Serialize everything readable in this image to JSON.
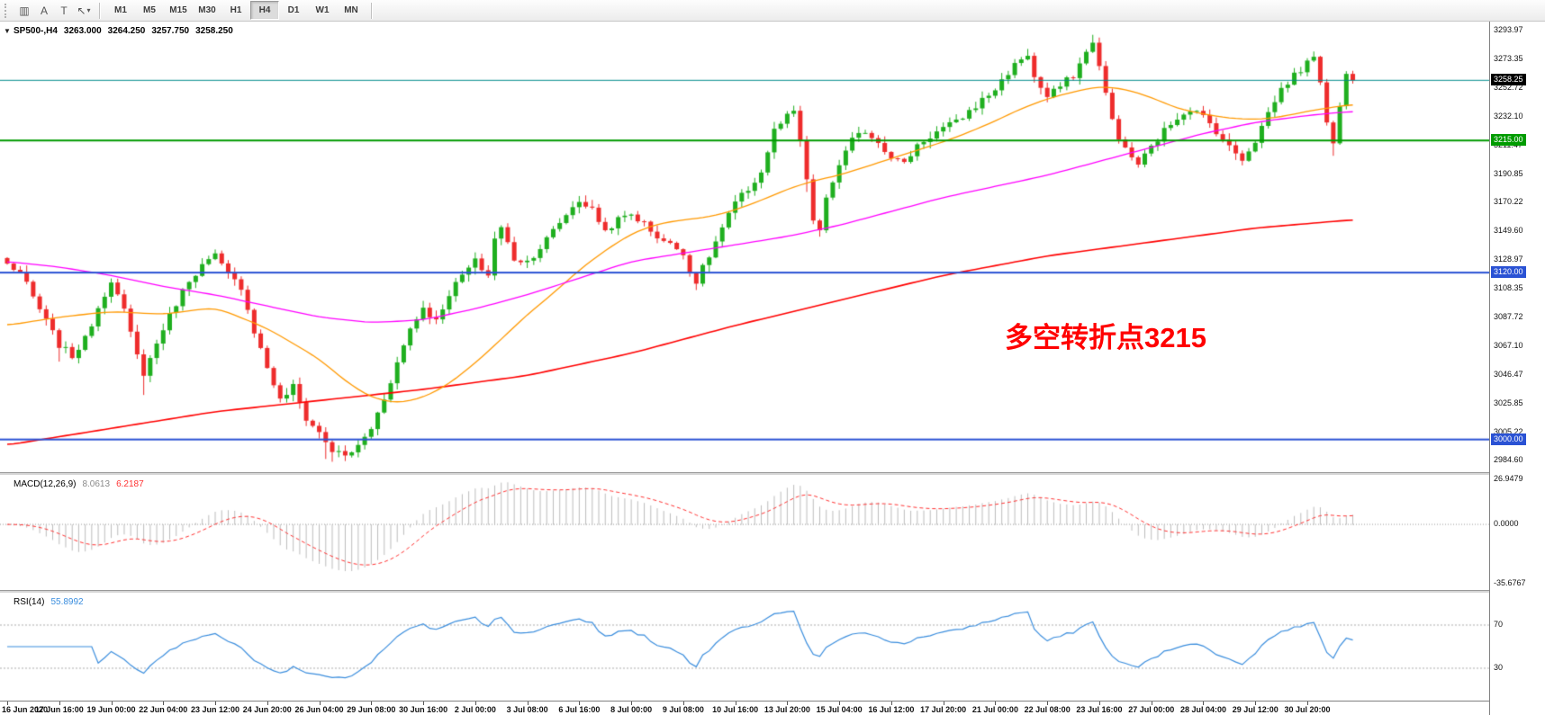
{
  "toolbar": {
    "icons": [
      {
        "name": "chart-window-icon",
        "glyph": "▥"
      },
      {
        "name": "text-tool-icon",
        "glyph": "A"
      },
      {
        "name": "label-tool-icon",
        "glyph": "T"
      },
      {
        "name": "line-tools-icon",
        "glyph": "↖",
        "caret": "▾"
      }
    ],
    "timeframes": [
      "M1",
      "M5",
      "M15",
      "M30",
      "H1",
      "H4",
      "D1",
      "W1",
      "MN"
    ],
    "active_timeframe": "H4"
  },
  "main": {
    "expander": "▼",
    "symbol": "SP500-,H4",
    "open": "3263.000",
    "high": "3264.250",
    "low": "3257.750",
    "close": "3258.250",
    "annotation": {
      "text": "多空转折点3215",
      "color": "#FF0000"
    }
  },
  "price_axis": {
    "labels": [
      "3293.97",
      "3273.35",
      "3252.72",
      "3232.10",
      "3211.47",
      "3190.85",
      "3170.22",
      "3149.60",
      "3128.97",
      "3108.35",
      "3087.72",
      "3067.10",
      "3046.47",
      "3025.85",
      "3005.22",
      "2984.60"
    ]
  },
  "tags": [
    {
      "label": "3258.25",
      "price": 3258.25,
      "bg": "#000000"
    },
    {
      "label": "3215.00",
      "price": 3215.0,
      "bg": "#009B00"
    },
    {
      "label": "3120.00",
      "price": 3120.0,
      "bg": "#2A52D4"
    },
    {
      "label": "3000.00",
      "price": 3000.0,
      "bg": "#2A52D4"
    }
  ],
  "chart_data": {
    "type": "candlestick",
    "symbol": "SP500-",
    "period": "H4",
    "bars": 208,
    "ylim": [
      2976.5,
      3300.5
    ],
    "up_color": "#1FAF1F",
    "down_color": "#EE2C2C",
    "close_anchors": [
      [
        0,
        3126
      ],
      [
        2,
        3120
      ],
      [
        4,
        3102
      ],
      [
        6,
        3085
      ],
      [
        8,
        3068
      ],
      [
        10,
        3060
      ],
      [
        12,
        3072
      ],
      [
        14,
        3095
      ],
      [
        16,
        3115
      ],
      [
        18,
        3092
      ],
      [
        20,
        3060
      ],
      [
        21,
        3048
      ],
      [
        22,
        3058
      ],
      [
        24,
        3080
      ],
      [
        26,
        3098
      ],
      [
        28,
        3115
      ],
      [
        30,
        3125
      ],
      [
        32,
        3132
      ],
      [
        34,
        3118
      ],
      [
        36,
        3110
      ],
      [
        38,
        3078
      ],
      [
        40,
        3052
      ],
      [
        42,
        3028
      ],
      [
        44,
        3038
      ],
      [
        46,
        3015
      ],
      [
        48,
        3005
      ],
      [
        50,
        2992
      ],
      [
        52,
        2988
      ],
      [
        54,
        2995
      ],
      [
        56,
        3008
      ],
      [
        58,
        3030
      ],
      [
        60,
        3055
      ],
      [
        62,
        3080
      ],
      [
        64,
        3095
      ],
      [
        66,
        3085
      ],
      [
        68,
        3105
      ],
      [
        70,
        3118
      ],
      [
        72,
        3128
      ],
      [
        74,
        3118
      ],
      [
        75,
        3145
      ],
      [
        76,
        3152
      ],
      [
        78,
        3130
      ],
      [
        80,
        3128
      ],
      [
        82,
        3138
      ],
      [
        84,
        3150
      ],
      [
        86,
        3162
      ],
      [
        88,
        3172
      ],
      [
        90,
        3165
      ],
      [
        92,
        3150
      ],
      [
        94,
        3158
      ],
      [
        96,
        3162
      ],
      [
        98,
        3155
      ],
      [
        100,
        3146
      ],
      [
        102,
        3140
      ],
      [
        104,
        3135
      ],
      [
        105,
        3120
      ],
      [
        106,
        3114
      ],
      [
        108,
        3132
      ],
      [
        110,
        3152
      ],
      [
        112,
        3170
      ],
      [
        114,
        3180
      ],
      [
        116,
        3192
      ],
      [
        118,
        3222
      ],
      [
        120,
        3232
      ],
      [
        121,
        3235
      ],
      [
        122,
        3215
      ],
      [
        123,
        3185
      ],
      [
        124,
        3158
      ],
      [
        125,
        3150
      ],
      [
        126,
        3172
      ],
      [
        128,
        3198
      ],
      [
        130,
        3215
      ],
      [
        132,
        3222
      ],
      [
        134,
        3214
      ],
      [
        136,
        3204
      ],
      [
        138,
        3198
      ],
      [
        140,
        3212
      ],
      [
        142,
        3218
      ],
      [
        144,
        3224
      ],
      [
        146,
        3228
      ],
      [
        148,
        3236
      ],
      [
        150,
        3244
      ],
      [
        152,
        3252
      ],
      [
        154,
        3264
      ],
      [
        156,
        3274
      ],
      [
        157,
        3277
      ],
      [
        158,
        3260
      ],
      [
        160,
        3246
      ],
      [
        162,
        3254
      ],
      [
        164,
        3262
      ],
      [
        166,
        3278
      ],
      [
        167,
        3287
      ],
      [
        168,
        3268
      ],
      [
        169,
        3248
      ],
      [
        170,
        3230
      ],
      [
        171,
        3218
      ],
      [
        172,
        3208
      ],
      [
        174,
        3198
      ],
      [
        176,
        3210
      ],
      [
        178,
        3222
      ],
      [
        180,
        3232
      ],
      [
        182,
        3238
      ],
      [
        184,
        3232
      ],
      [
        186,
        3222
      ],
      [
        188,
        3210
      ],
      [
        190,
        3202
      ],
      [
        192,
        3215
      ],
      [
        194,
        3235
      ],
      [
        196,
        3252
      ],
      [
        198,
        3262
      ],
      [
        200,
        3270
      ],
      [
        201,
        3277
      ],
      [
        202,
        3258
      ],
      [
        203,
        3230
      ],
      [
        204,
        3212
      ],
      [
        205,
        3240
      ],
      [
        206,
        3262
      ],
      [
        207,
        3258.25
      ]
    ],
    "wick_overrides": {
      "8": {
        "low": 3056
      },
      "21": {
        "low": 3032
      },
      "49": {
        "low": 2986
      },
      "50": {
        "low": 2984
      },
      "52": {
        "low": 2984.5
      },
      "123": {
        "low": 3178
      },
      "167": {
        "high": 3291
      },
      "201": {
        "high": 3279
      },
      "204": {
        "low": 3204
      }
    },
    "ma_lines": [
      {
        "name": "ma-slow",
        "color": "#FF0000",
        "width": 1.6,
        "anchors": [
          [
            0,
            2996
          ],
          [
            16,
            3008
          ],
          [
            32,
            3020
          ],
          [
            48,
            3028
          ],
          [
            64,
            3036
          ],
          [
            80,
            3046
          ],
          [
            96,
            3062
          ],
          [
            112,
            3082
          ],
          [
            128,
            3100
          ],
          [
            144,
            3118
          ],
          [
            160,
            3132
          ],
          [
            176,
            3142
          ],
          [
            192,
            3152
          ],
          [
            207,
            3158
          ]
        ]
      },
      {
        "name": "ma-fast",
        "color": "#FF9900",
        "width": 1.3,
        "anchors": [
          [
            0,
            3082
          ],
          [
            8,
            3088
          ],
          [
            16,
            3092
          ],
          [
            24,
            3090
          ],
          [
            32,
            3095
          ],
          [
            40,
            3080
          ],
          [
            48,
            3058
          ],
          [
            52,
            3042
          ],
          [
            56,
            3030
          ],
          [
            60,
            3026
          ],
          [
            64,
            3030
          ],
          [
            68,
            3040
          ],
          [
            72,
            3055
          ],
          [
            76,
            3072
          ],
          [
            80,
            3090
          ],
          [
            84,
            3105
          ],
          [
            88,
            3122
          ],
          [
            92,
            3136
          ],
          [
            96,
            3148
          ],
          [
            100,
            3155
          ],
          [
            104,
            3158
          ],
          [
            108,
            3160
          ],
          [
            112,
            3165
          ],
          [
            116,
            3172
          ],
          [
            120,
            3180
          ],
          [
            124,
            3186
          ],
          [
            128,
            3190
          ],
          [
            132,
            3196
          ],
          [
            136,
            3202
          ],
          [
            140,
            3208
          ],
          [
            144,
            3214
          ],
          [
            148,
            3221
          ],
          [
            152,
            3229
          ],
          [
            156,
            3238
          ],
          [
            160,
            3245
          ],
          [
            164,
            3250
          ],
          [
            168,
            3254
          ],
          [
            172,
            3252
          ],
          [
            176,
            3246
          ],
          [
            180,
            3238
          ],
          [
            184,
            3234
          ],
          [
            188,
            3231
          ],
          [
            192,
            3230
          ],
          [
            196,
            3232
          ],
          [
            200,
            3236
          ],
          [
            204,
            3239
          ],
          [
            207,
            3241
          ]
        ]
      },
      {
        "name": "ma-mid",
        "color": "#FF00FF",
        "width": 1.3,
        "anchors": [
          [
            0,
            3128
          ],
          [
            8,
            3124
          ],
          [
            16,
            3118
          ],
          [
            24,
            3110
          ],
          [
            32,
            3104
          ],
          [
            40,
            3096
          ],
          [
            48,
            3088
          ],
          [
            56,
            3084
          ],
          [
            64,
            3086
          ],
          [
            72,
            3094
          ],
          [
            80,
            3104
          ],
          [
            88,
            3116
          ],
          [
            96,
            3128
          ],
          [
            104,
            3134
          ],
          [
            112,
            3140
          ],
          [
            120,
            3146
          ],
          [
            128,
            3154
          ],
          [
            136,
            3164
          ],
          [
            144,
            3174
          ],
          [
            152,
            3182
          ],
          [
            160,
            3190
          ],
          [
            168,
            3200
          ],
          [
            176,
            3210
          ],
          [
            184,
            3220
          ],
          [
            192,
            3228
          ],
          [
            200,
            3233
          ],
          [
            207,
            3236
          ]
        ]
      }
    ],
    "h_lines": [
      {
        "price": 3258.25,
        "color": "#008B8B",
        "width": 1
      },
      {
        "price": 3215.0,
        "color": "#009B00",
        "width": 2
      },
      {
        "price": 3120.0,
        "color": "#2A52D4",
        "width": 2
      },
      {
        "price": 3000.0,
        "color": "#2A52D4",
        "width": 2
      }
    ],
    "x_labels": [
      "16 Jun 2020",
      "17 Jun 16:00",
      "19 Jun 00:00",
      "22 Jun 04:00",
      "23 Jun 12:00",
      "24 Jun 20:00",
      "26 Jun 04:00",
      "29 Jun 08:00",
      "30 Jun 16:00",
      "2 Jul 00:00",
      "3 Jul 08:00",
      "6 Jul 16:00",
      "8 Jul 00:00",
      "9 Jul 08:00",
      "10 Jul 16:00",
      "13 Jul 20:00",
      "15 Jul 04:00",
      "16 Jul 12:00",
      "17 Jul 20:00",
      "21 Jul 00:00",
      "22 Jul 08:00",
      "23 Jul 16:00",
      "27 Jul 00:00",
      "28 Jul 04:00",
      "29 Jul 12:00",
      "30 Jul 20:00"
    ],
    "x_label_step": 8
  },
  "macd": {
    "title": "MACD(12,26,9)",
    "value_main": "8.0613",
    "value_signal": "6.2187",
    "fast": 12,
    "slow": 26,
    "signal": 9,
    "axis_labels": [
      {
        "text": "26.9479",
        "value": 26.9479
      },
      {
        "text": "0.0000",
        "value": 0
      },
      {
        "text": "-35.6767",
        "value": -35.6767
      }
    ],
    "hist_color": "#BDBDBD",
    "signal_color": "#FF3333",
    "scale": [
      -39.2,
      29.6
    ]
  },
  "rsi": {
    "title": "RSI(14)",
    "value": "55.8992",
    "period": 14,
    "levels": [
      70,
      30
    ],
    "line_color": "#3B8EDE",
    "level_color": "#ADADAD",
    "scale": [
      0,
      100
    ]
  }
}
